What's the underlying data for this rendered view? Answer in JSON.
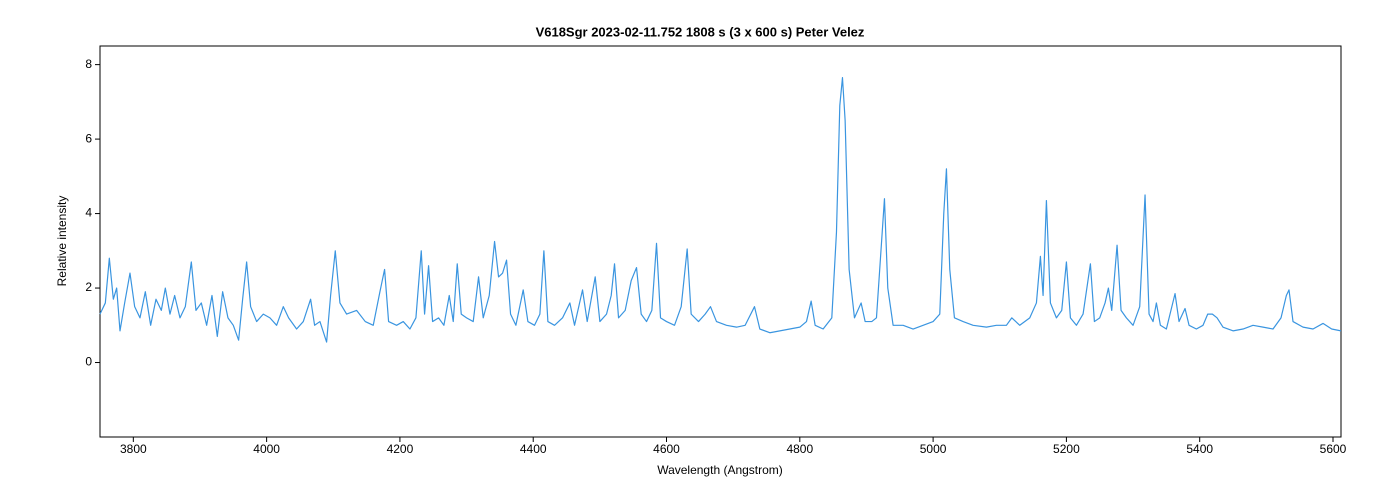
{
  "chart_data": {
    "type": "line",
    "title": "V618Sgr  2023-02-11.752  1808 s (3 x 600 s)  Peter Velez",
    "x_label": "Wavelength (Angstrom)",
    "y_label": "Relative intensity",
    "color": "#3a95e0",
    "xlim": [
      3750,
      5612
    ],
    "ylim": [
      -2,
      8.5
    ],
    "xticks": [
      3800,
      4000,
      4200,
      4400,
      4600,
      4800,
      5000,
      5200,
      5400,
      5600
    ],
    "yticks": [
      0,
      2,
      4,
      6,
      8
    ],
    "x": [
      3750,
      3758,
      3764,
      3770,
      3775,
      3780,
      3787,
      3795,
      3802,
      3810,
      3818,
      3826,
      3834,
      3842,
      3848,
      3855,
      3862,
      3870,
      3878,
      3887,
      3894,
      3902,
      3910,
      3918,
      3926,
      3934,
      3942,
      3950,
      3958,
      3964,
      3970,
      3976,
      3985,
      3995,
      4005,
      4015,
      4025,
      4033,
      4045,
      4055,
      4066,
      4072,
      4080,
      4090,
      4096,
      4103,
      4110,
      4120,
      4135,
      4148,
      4160,
      4170,
      4177,
      4183,
      4195,
      4205,
      4215,
      4224,
      4232,
      4237,
      4243,
      4249,
      4258,
      4266,
      4274,
      4280,
      4286,
      4292,
      4300,
      4310,
      4318,
      4325,
      4334,
      4342,
      4348,
      4354,
      4360,
      4366,
      4374,
      4385,
      4392,
      4402,
      4410,
      4416,
      4422,
      4432,
      4444,
      4455,
      4462,
      4474,
      4481,
      4493,
      4500,
      4510,
      4517,
      4522,
      4528,
      4538,
      4547,
      4555,
      4562,
      4570,
      4578,
      4585,
      4591,
      4600,
      4612,
      4622,
      4631,
      4637,
      4648,
      4658,
      4666,
      4675,
      4690,
      4705,
      4718,
      4732,
      4740,
      4755,
      4770,
      4785,
      4800,
      4810,
      4817,
      4823,
      4835,
      4848,
      4855,
      4860,
      4864,
      4868,
      4874,
      4882,
      4892,
      4898,
      4908,
      4915,
      4921,
      4927,
      4932,
      4940,
      4955,
      4970,
      4985,
      5000,
      5010,
      5016,
      5020,
      5025,
      5032,
      5045,
      5060,
      5080,
      5095,
      5110,
      5118,
      5130,
      5145,
      5155,
      5161,
      5165,
      5170,
      5176,
      5185,
      5193,
      5200,
      5206,
      5215,
      5225,
      5236,
      5242,
      5250,
      5258,
      5263,
      5268,
      5276,
      5282,
      5290,
      5300,
      5310,
      5318,
      5324,
      5330,
      5335,
      5341,
      5350,
      5363,
      5369,
      5378,
      5384,
      5395,
      5405,
      5412,
      5419,
      5426,
      5435,
      5450,
      5465,
      5480,
      5495,
      5510,
      5522,
      5530,
      5534,
      5540,
      5555,
      5570,
      5585,
      5598,
      5612
    ],
    "values": [
      1.3,
      1.6,
      2.8,
      1.7,
      2.0,
      0.85,
      1.6,
      2.4,
      1.5,
      1.2,
      1.9,
      1.0,
      1.7,
      1.4,
      2.0,
      1.3,
      1.8,
      1.2,
      1.5,
      2.7,
      1.4,
      1.6,
      1.0,
      1.8,
      0.7,
      1.9,
      1.2,
      1.0,
      0.6,
      1.7,
      2.7,
      1.5,
      1.1,
      1.3,
      1.2,
      1.0,
      1.5,
      1.2,
      0.9,
      1.1,
      1.7,
      1.0,
      1.1,
      0.55,
      1.8,
      3.0,
      1.6,
      1.3,
      1.4,
      1.1,
      1.0,
      1.9,
      2.5,
      1.1,
      1.0,
      1.1,
      0.9,
      1.2,
      3.0,
      1.3,
      2.6,
      1.1,
      1.2,
      1.0,
      1.8,
      1.1,
      2.65,
      1.3,
      1.2,
      1.1,
      2.3,
      1.2,
      1.8,
      3.25,
      2.3,
      2.4,
      2.75,
      1.3,
      1.0,
      1.95,
      1.1,
      1.0,
      1.3,
      3.0,
      1.1,
      1.0,
      1.2,
      1.6,
      1.0,
      1.95,
      1.1,
      2.3,
      1.1,
      1.3,
      1.8,
      2.65,
      1.2,
      1.4,
      2.2,
      2.55,
      1.3,
      1.1,
      1.4,
      3.2,
      1.2,
      1.1,
      1.0,
      1.5,
      3.05,
      1.3,
      1.1,
      1.3,
      1.5,
      1.1,
      1.0,
      0.95,
      1.0,
      1.5,
      0.9,
      0.8,
      0.85,
      0.9,
      0.95,
      1.1,
      1.65,
      1.0,
      0.9,
      1.2,
      3.5,
      6.9,
      7.65,
      6.5,
      2.5,
      1.2,
      1.6,
      1.1,
      1.1,
      1.2,
      2.8,
      4.4,
      2.0,
      1.0,
      1.0,
      0.9,
      1.0,
      1.1,
      1.3,
      4.0,
      5.2,
      2.5,
      1.2,
      1.1,
      1.0,
      0.95,
      1.0,
      1.0,
      1.2,
      1.0,
      1.2,
      1.6,
      2.85,
      1.8,
      4.35,
      1.6,
      1.2,
      1.4,
      2.7,
      1.2,
      1.0,
      1.3,
      2.65,
      1.1,
      1.2,
      1.6,
      2.0,
      1.4,
      3.15,
      1.4,
      1.2,
      1.0,
      1.5,
      4.5,
      1.3,
      1.1,
      1.6,
      1.0,
      0.9,
      1.85,
      1.1,
      1.45,
      1.0,
      0.9,
      1.0,
      1.3,
      1.3,
      1.2,
      0.95,
      0.85,
      0.9,
      1.0,
      0.95,
      0.9,
      1.2,
      1.8,
      1.95,
      1.1,
      0.95,
      0.9,
      1.05,
      0.9,
      0.85
    ]
  }
}
